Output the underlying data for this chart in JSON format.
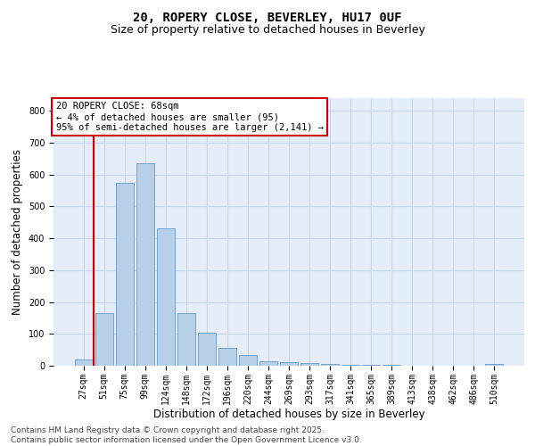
{
  "title_line1": "20, ROPERY CLOSE, BEVERLEY, HU17 0UF",
  "title_line2": "Size of property relative to detached houses in Beverley",
  "xlabel": "Distribution of detached houses by size in Beverley",
  "ylabel": "Number of detached properties",
  "categories": [
    "27sqm",
    "51sqm",
    "75sqm",
    "99sqm",
    "124sqm",
    "148sqm",
    "172sqm",
    "196sqm",
    "220sqm",
    "244sqm",
    "269sqm",
    "293sqm",
    "317sqm",
    "341sqm",
    "365sqm",
    "389sqm",
    "413sqm",
    "438sqm",
    "462sqm",
    "486sqm",
    "510sqm"
  ],
  "values": [
    20,
    165,
    575,
    635,
    430,
    165,
    103,
    55,
    35,
    15,
    12,
    9,
    5,
    4,
    3,
    2,
    1,
    0,
    0,
    0,
    5
  ],
  "bar_color": "#b8cfe8",
  "bar_edge_color": "#6699cc",
  "vline_color": "#cc0000",
  "annotation_box_text": "20 ROPERY CLOSE: 68sqm\n← 4% of detached houses are smaller (95)\n95% of semi-detached houses are larger (2,141) →",
  "annotation_box_edgecolor": "#cc0000",
  "annotation_fontsize": 7.5,
  "ylim": [
    0,
    840
  ],
  "yticks": [
    0,
    100,
    200,
    300,
    400,
    500,
    600,
    700,
    800
  ],
  "grid_color": "#c8d8ec",
  "bg_color": "#e4edf8",
  "bar_width": 0.85,
  "footer_line1": "Contains HM Land Registry data © Crown copyright and database right 2025.",
  "footer_line2": "Contains public sector information licensed under the Open Government Licence v3.0.",
  "title_fontsize": 10,
  "subtitle_fontsize": 9,
  "axis_label_fontsize": 8.5,
  "tick_fontsize": 7,
  "footer_fontsize": 6.5
}
